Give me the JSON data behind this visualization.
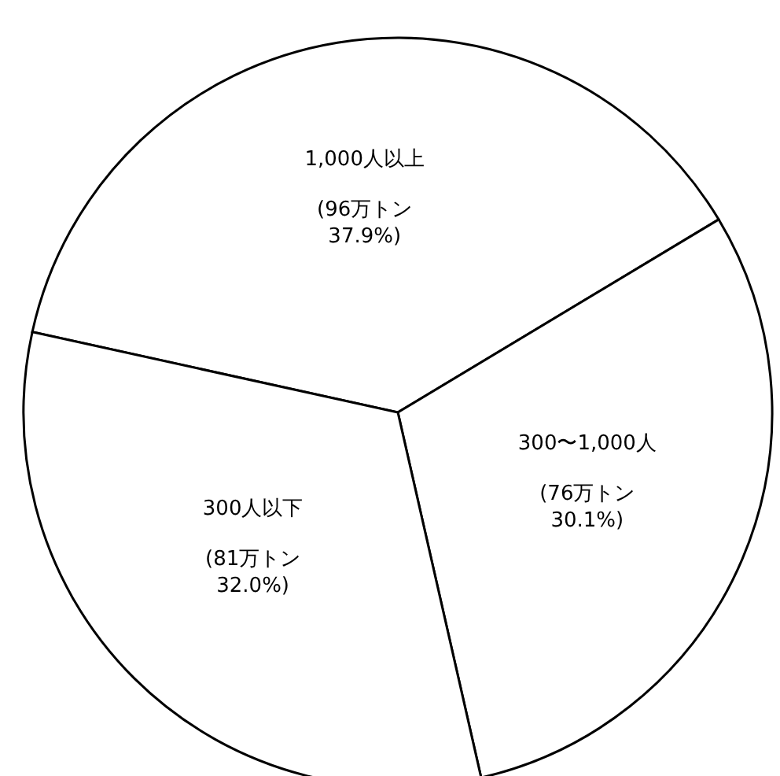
{
  "chart_data": {
    "type": "pie",
    "categories": [
      "1,000人以上",
      "300〜1,000人",
      "300人以下"
    ],
    "values": [
      96,
      76,
      81
    ],
    "value_labels": [
      "(96万トン 37.9%)",
      "(76万トン 30.1%)",
      "(81万トン 32.0%)"
    ],
    "colors": [
      "#ffffff",
      "#ffffff",
      "#ffffff"
    ]
  }
}
